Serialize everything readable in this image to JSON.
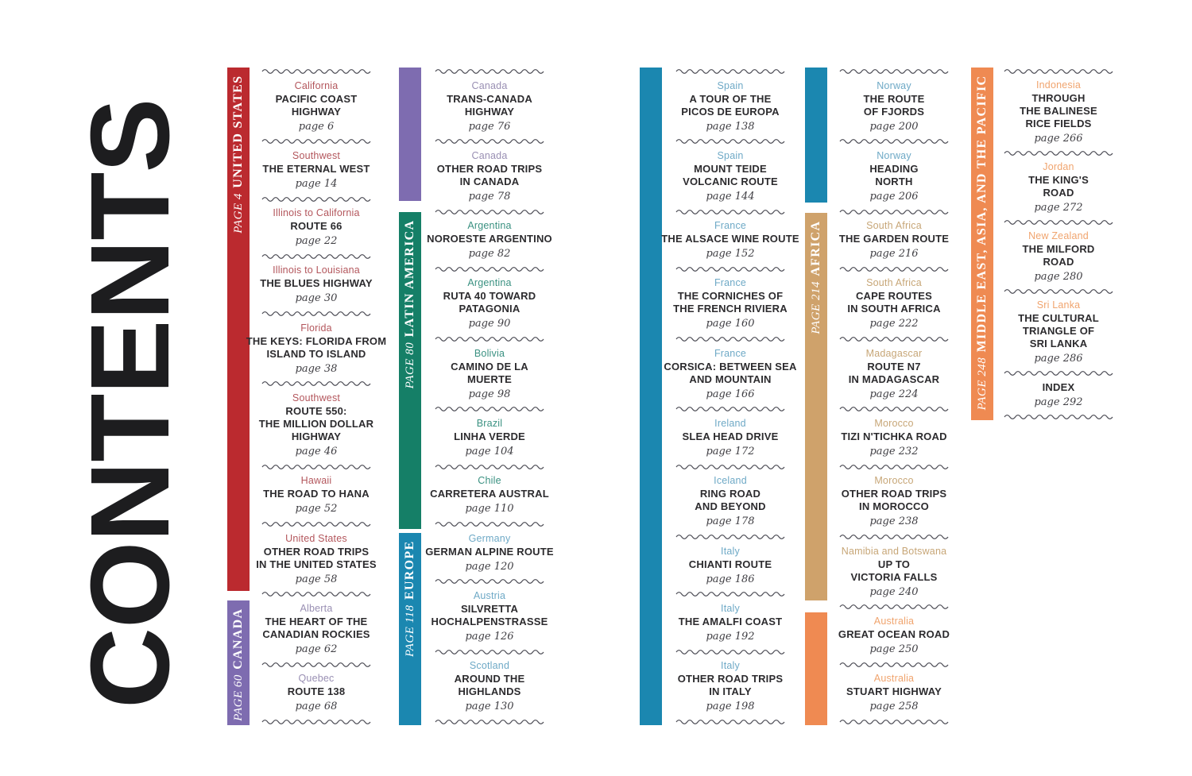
{
  "page_title": "CONTENTS",
  "palette": {
    "united_states": {
      "bar": "#bb2a2f",
      "label": "#b3565c"
    },
    "canada": {
      "bar": "#7e6cb0",
      "label": "#998fb3"
    },
    "latin_america": {
      "bar": "#157f67",
      "label": "#3a9181"
    },
    "europe": {
      "bar": "#1b87b0",
      "label": "#6ea9c6"
    },
    "africa": {
      "bar": "#cfa26b",
      "label": "#c7a677"
    },
    "middle_east_asia_pacific": {
      "bar": "#ef8a52",
      "label": "#f0a46e"
    }
  },
  "wave_color": "#4c4c55",
  "columns": [
    {
      "bars": [
        {
          "region": "united_states",
          "page_label": "PAGE 4",
          "name": "UNITED STATES"
        },
        {
          "region": "canada",
          "page_label": "PAGE 60",
          "name": "CANADA"
        }
      ],
      "entries": [
        {
          "region": "united_states",
          "location": "California",
          "title": [
            "PACIFIC COAST",
            "HIGHWAY"
          ],
          "page": "page 6"
        },
        {
          "region": "united_states",
          "location": "Southwest",
          "title": [
            "THE ETERNAL WEST"
          ],
          "page": "page 14"
        },
        {
          "region": "united_states",
          "location": "Illinois to California",
          "title": [
            "ROUTE 66"
          ],
          "page": "page 22"
        },
        {
          "region": "united_states",
          "location": "Illinois to Louisiana",
          "title": [
            "THE BLUES HIGHWAY"
          ],
          "page": "page 30"
        },
        {
          "region": "united_states",
          "location": "Florida",
          "title": [
            "THE KEYS: FLORIDA FROM",
            "ISLAND TO ISLAND"
          ],
          "page": "page 38"
        },
        {
          "region": "united_states",
          "location": "Southwest",
          "title": [
            "ROUTE 550:",
            "THE MILLION DOLLAR",
            "HIGHWAY"
          ],
          "page": "page 46"
        },
        {
          "region": "united_states",
          "location": "Hawaii",
          "title": [
            "THE ROAD TO HANA"
          ],
          "page": "page 52"
        },
        {
          "region": "united_states",
          "location": "United States",
          "title": [
            "OTHER ROAD TRIPS",
            "IN THE UNITED STATES"
          ],
          "page": "page 58"
        },
        {
          "region": "canada",
          "location": "Alberta",
          "title": [
            "THE HEART OF THE",
            "CANADIAN ROCKIES"
          ],
          "page": "page 62"
        },
        {
          "region": "canada",
          "location": "Quebec",
          "title": [
            "ROUTE 138"
          ],
          "page": "page 68"
        }
      ]
    },
    {
      "bars": [
        {
          "region": "canada"
        },
        {
          "region": "latin_america",
          "page_label": "PAGE 80",
          "name": "LATIN AMERICA"
        },
        {
          "region": "europe",
          "page_label": "PAGE 118",
          "name": "EUROPE"
        }
      ],
      "entries": [
        {
          "region": "canada",
          "location": "Canada",
          "title": [
            "TRANS-CANADA",
            "HIGHWAY"
          ],
          "page": "page 76"
        },
        {
          "region": "canada",
          "location": "Canada",
          "title": [
            "OTHER ROAD TRIPS",
            "IN CANADA"
          ],
          "page": "page 78"
        },
        {
          "region": "latin_america",
          "location": "Argentina",
          "title": [
            "NOROESTE ARGENTINO"
          ],
          "page": "page 82"
        },
        {
          "region": "latin_america",
          "location": "Argentina",
          "title": [
            "RUTA 40 TOWARD",
            "PATAGONIA"
          ],
          "page": "page 90"
        },
        {
          "region": "latin_america",
          "location": "Bolivia",
          "title": [
            "CAMINO DE LA",
            "MUERTE"
          ],
          "page": "page 98"
        },
        {
          "region": "latin_america",
          "location": "Brazil",
          "title": [
            "LINHA VERDE"
          ],
          "page": "page 104"
        },
        {
          "region": "latin_america",
          "location": "Chile",
          "title": [
            "CARRETERA AUSTRAL"
          ],
          "page": "page 110"
        },
        {
          "region": "europe",
          "location": "Germany",
          "title": [
            "GERMAN ALPINE ROUTE"
          ],
          "page": "page 120"
        },
        {
          "region": "europe",
          "location": "Austria",
          "title": [
            "SILVRETTA",
            "HOCHALPENSTRASSE"
          ],
          "page": "page 126"
        },
        {
          "region": "europe",
          "location": "Scotland",
          "title": [
            "AROUND THE",
            "HIGHLANDS"
          ],
          "page": "page 130"
        }
      ]
    },
    {
      "bars": [
        {
          "region": "europe"
        }
      ],
      "entries": [
        {
          "region": "europe",
          "location": "Spain",
          "title": [
            "A TOUR OF THE",
            "PICOS DE EUROPA"
          ],
          "page": "page 138"
        },
        {
          "region": "europe",
          "location": "Spain",
          "title": [
            "MOUNT TEIDE",
            "VOLCANIC ROUTE"
          ],
          "page": "page 144"
        },
        {
          "region": "europe",
          "location": "France",
          "title": [
            "THE ALSACE WINE ROUTE"
          ],
          "page": "page 152"
        },
        {
          "region": "europe",
          "location": "France",
          "title": [
            "THE CORNICHES OF",
            "THE FRENCH RIVIERA"
          ],
          "page": "page 160"
        },
        {
          "region": "europe",
          "location": "France",
          "title": [
            "CORSICA: BETWEEN SEA",
            "AND MOUNTAIN"
          ],
          "page": "page 166"
        },
        {
          "region": "europe",
          "location": "Ireland",
          "title": [
            "SLEA HEAD DRIVE"
          ],
          "page": "page 172"
        },
        {
          "region": "europe",
          "location": "Iceland",
          "title": [
            "RING ROAD",
            "AND BEYOND"
          ],
          "page": "page 178"
        },
        {
          "region": "europe",
          "location": "Italy",
          "title": [
            "CHIANTI ROUTE"
          ],
          "page": "page 186"
        },
        {
          "region": "europe",
          "location": "Italy",
          "title": [
            "THE AMALFI COAST"
          ],
          "page": "page 192"
        },
        {
          "region": "europe",
          "location": "Italy",
          "title": [
            "OTHER ROAD TRIPS",
            "IN ITALY"
          ],
          "page": "page 198"
        }
      ]
    },
    {
      "bars": [
        {
          "region": "europe"
        },
        {
          "region": "africa",
          "page_label": "PAGE 214",
          "name": "AFRICA"
        },
        {
          "region": "middle_east_asia_pacific"
        }
      ],
      "entries": [
        {
          "region": "europe",
          "location": "Norway",
          "title": [
            "THE ROUTE",
            "OF FJORDS"
          ],
          "page": "page 200"
        },
        {
          "region": "europe",
          "location": "Norway",
          "title": [
            "HEADING",
            "NORTH"
          ],
          "page": "page 206"
        },
        {
          "region": "africa",
          "location": "South Africa",
          "title": [
            "THE GARDEN ROUTE"
          ],
          "page": "page 216"
        },
        {
          "region": "africa",
          "location": "South Africa",
          "title": [
            "CAPE ROUTES",
            "IN SOUTH AFRICA"
          ],
          "page": "page 222"
        },
        {
          "region": "africa",
          "location": "Madagascar",
          "title": [
            "ROUTE N7",
            "IN MADAGASCAR"
          ],
          "page": "page 224"
        },
        {
          "region": "africa",
          "location": "Morocco",
          "title": [
            "TIZI N'TICHKA ROAD"
          ],
          "page": "page 232"
        },
        {
          "region": "africa",
          "location": "Morocco",
          "title": [
            "OTHER ROAD TRIPS",
            "IN MOROCCO"
          ],
          "page": "page 238"
        },
        {
          "region": "africa",
          "location": "Namibia and Botswana",
          "title": [
            "UP TO",
            "VICTORIA FALLS"
          ],
          "page": "page 240"
        },
        {
          "region": "middle_east_asia_pacific",
          "location": "Australia",
          "title": [
            "GREAT OCEAN ROAD"
          ],
          "page": "page 250"
        },
        {
          "region": "middle_east_asia_pacific",
          "location": "Australia",
          "title": [
            "STUART HIGHWAY"
          ],
          "page": "page 258"
        }
      ]
    },
    {
      "bars": [
        {
          "region": "middle_east_asia_pacific",
          "page_label": "PAGE 248",
          "name": "MIDDLE EAST, ASIA, AND THE PACIFIC"
        }
      ],
      "entries": [
        {
          "region": "middle_east_asia_pacific",
          "location": "Indonesia",
          "title": [
            "THROUGH",
            "THE BALINESE",
            "RICE FIELDS"
          ],
          "page": "page 266"
        },
        {
          "region": "middle_east_asia_pacific",
          "location": "Jordan",
          "title": [
            "THE KING'S",
            "ROAD"
          ],
          "page": "page 272"
        },
        {
          "region": "middle_east_asia_pacific",
          "location": "New Zealand",
          "title": [
            "THE MILFORD",
            "ROAD"
          ],
          "page": "page 280"
        },
        {
          "region": "middle_east_asia_pacific",
          "location": "Sri Lanka",
          "title": [
            "THE CULTURAL",
            "TRIANGLE OF",
            "SRI LANKA"
          ],
          "page": "page 286"
        },
        {
          "region": null,
          "location": null,
          "title": [
            "INDEX"
          ],
          "page": "page 292"
        }
      ]
    }
  ]
}
